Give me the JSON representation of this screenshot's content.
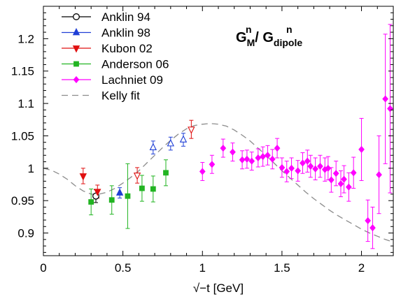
{
  "chart_data": {
    "type": "scatter",
    "title_main": "G",
    "title_sub_main": "M",
    "title_sup_main": "n",
    "title_sep": "/ G",
    "title_sub_den": "dipole",
    "title_sup_den": "n",
    "xlabel": "√−t  [GeV]",
    "ylabel": "",
    "xlim": [
      0,
      2.2
    ],
    "ylim": [
      0.865,
      1.25
    ],
    "xticks": [
      0,
      0.5,
      1,
      1.5,
      2
    ],
    "xtick_labels": [
      "0",
      "0.5",
      "1",
      "1.5",
      "2"
    ],
    "yticks": [
      0.9,
      0.95,
      1,
      1.05,
      1.1,
      1.15,
      1.2
    ],
    "ytick_labels": [
      "0.9",
      "0.95",
      "1",
      "1.05",
      "1.1",
      "1.15",
      "1.2"
    ],
    "grid": false,
    "legend_position": "top-left",
    "series": [
      {
        "name": "Anklin 94",
        "color": "#000000",
        "marker": "circle-open",
        "points": [
          {
            "x": 0.33,
            "y": 0.957,
            "yerr": 0.01
          }
        ]
      },
      {
        "name": "Anklin 98",
        "color": "#1f3fd6",
        "marker": "triangle-up",
        "points": [
          {
            "x": 0.48,
            "y": 0.962,
            "yerr": 0.008,
            "open": false
          },
          {
            "x": 0.69,
            "y": 1.032,
            "yerr": 0.01,
            "open": true
          },
          {
            "x": 0.8,
            "y": 1.038,
            "yerr": 0.01,
            "open": true
          },
          {
            "x": 0.88,
            "y": 1.044,
            "yerr": 0.01,
            "open": true
          }
        ]
      },
      {
        "name": "Kubon 02",
        "color": "#e01010",
        "marker": "triangle-down",
        "points": [
          {
            "x": 0.25,
            "y": 0.988,
            "yerr": 0.012,
            "open": false
          },
          {
            "x": 0.34,
            "y": 0.964,
            "yerr": 0.01,
            "open": false
          },
          {
            "x": 0.59,
            "y": 0.989,
            "yerr": 0.012,
            "open": true
          },
          {
            "x": 0.93,
            "y": 1.06,
            "yerr": 0.014,
            "open": true
          }
        ]
      },
      {
        "name": "Anderson 06",
        "color": "#22b422",
        "marker": "square",
        "points": [
          {
            "x": 0.3,
            "y": 0.948,
            "yerr": 0.02
          },
          {
            "x": 0.43,
            "y": 0.951,
            "yerr": 0.022
          },
          {
            "x": 0.53,
            "y": 0.957,
            "yerr": 0.05
          },
          {
            "x": 0.62,
            "y": 0.969,
            "yerr": 0.02
          },
          {
            "x": 0.69,
            "y": 0.968,
            "yerr": 0.02
          },
          {
            "x": 0.77,
            "y": 0.993,
            "yerr": 0.02
          }
        ]
      },
      {
        "name": "Lachniet 09",
        "color": "#ff00ff",
        "marker": "diamond",
        "points": [
          {
            "x": 1.0,
            "y": 0.995,
            "yerr": 0.014
          },
          {
            "x": 1.06,
            "y": 1.006,
            "yerr": 0.014
          },
          {
            "x": 1.13,
            "y": 1.031,
            "yerr": 0.014
          },
          {
            "x": 1.19,
            "y": 1.025,
            "yerr": 0.014
          },
          {
            "x": 1.25,
            "y": 1.013,
            "yerr": 0.014
          },
          {
            "x": 1.28,
            "y": 1.014,
            "yerr": 0.014
          },
          {
            "x": 1.31,
            "y": 1.011,
            "yerr": 0.014
          },
          {
            "x": 1.35,
            "y": 1.016,
            "yerr": 0.014
          },
          {
            "x": 1.38,
            "y": 1.018,
            "yerr": 0.015
          },
          {
            "x": 1.41,
            "y": 1.02,
            "yerr": 0.015
          },
          {
            "x": 1.44,
            "y": 1.014,
            "yerr": 0.015
          },
          {
            "x": 1.47,
            "y": 1.031,
            "yerr": 0.015
          },
          {
            "x": 1.5,
            "y": 1.001,
            "yerr": 0.015
          },
          {
            "x": 1.53,
            "y": 0.995,
            "yerr": 0.016
          },
          {
            "x": 1.56,
            "y": 1.0,
            "yerr": 0.016
          },
          {
            "x": 1.6,
            "y": 0.996,
            "yerr": 0.016
          },
          {
            "x": 1.63,
            "y": 1.008,
            "yerr": 0.016
          },
          {
            "x": 1.66,
            "y": 1.011,
            "yerr": 0.017
          },
          {
            "x": 1.68,
            "y": 1.003,
            "yerr": 0.017
          },
          {
            "x": 1.71,
            "y": 0.999,
            "yerr": 0.017
          },
          {
            "x": 1.74,
            "y": 1.003,
            "yerr": 0.017
          },
          {
            "x": 1.77,
            "y": 0.998,
            "yerr": 0.018
          },
          {
            "x": 1.79,
            "y": 1.0,
            "yerr": 0.018
          },
          {
            "x": 1.81,
            "y": 0.982,
            "yerr": 0.019
          },
          {
            "x": 1.84,
            "y": 0.992,
            "yerr": 0.019
          },
          {
            "x": 1.87,
            "y": 0.976,
            "yerr": 0.02
          },
          {
            "x": 1.89,
            "y": 0.983,
            "yerr": 0.021
          },
          {
            "x": 1.92,
            "y": 0.971,
            "yerr": 0.022
          },
          {
            "x": 1.95,
            "y": 0.993,
            "yerr": 0.024
          },
          {
            "x": 2.0,
            "y": 1.029,
            "yerr": 0.048
          },
          {
            "x": 2.04,
            "y": 0.919,
            "yerr": 0.032
          },
          {
            "x": 2.07,
            "y": 0.908,
            "yerr": 0.032
          },
          {
            "x": 2.11,
            "y": 0.99,
            "yerr": 0.06
          },
          {
            "x": 2.15,
            "y": 1.107,
            "yerr": 0.1
          },
          {
            "x": 2.18,
            "y": 1.092,
            "yerr": 0.13
          }
        ]
      }
    ],
    "fit": {
      "name": "Kelly fit",
      "color": "#8c8c8c",
      "style": "dashed",
      "x": [
        0,
        0.05,
        0.1,
        0.15,
        0.2,
        0.25,
        0.3,
        0.35,
        0.4,
        0.45,
        0.5,
        0.55,
        0.6,
        0.65,
        0.7,
        0.75,
        0.8,
        0.85,
        0.9,
        0.95,
        1.0,
        1.05,
        1.1,
        1.15,
        1.2,
        1.25,
        1.3,
        1.35,
        1.4,
        1.45,
        1.5,
        1.55,
        1.6,
        1.65,
        1.7,
        1.75,
        1.8,
        1.85,
        1.9,
        1.95,
        2.0,
        2.05,
        2.1,
        2.15,
        2.2
      ],
      "y": [
        1.0,
        0.997,
        0.991,
        0.983,
        0.973,
        0.965,
        0.96,
        0.96,
        0.963,
        0.969,
        0.977,
        0.986,
        0.996,
        1.008,
        1.02,
        1.032,
        1.043,
        1.053,
        1.061,
        1.066,
        1.068,
        1.069,
        1.068,
        1.065,
        1.059,
        1.051,
        1.042,
        1.031,
        1.02,
        1.008,
        0.996,
        0.985,
        0.974,
        0.963,
        0.953,
        0.944,
        0.935,
        0.927,
        0.92,
        0.913,
        0.906,
        0.9,
        0.895,
        0.89,
        0.886
      ]
    }
  }
}
